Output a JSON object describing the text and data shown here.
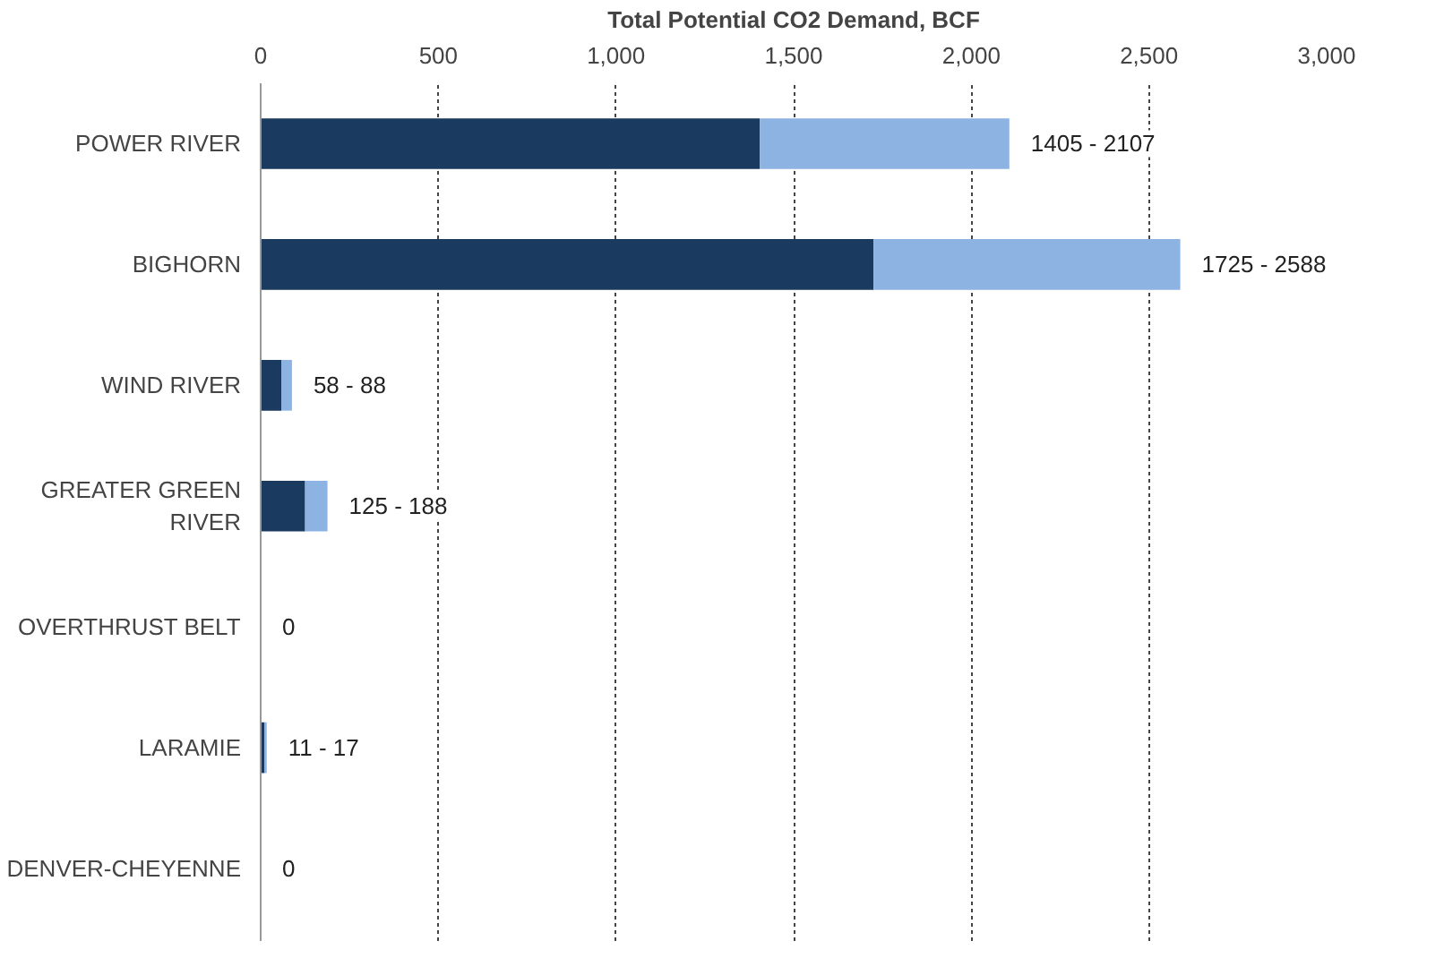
{
  "chart_data": {
    "type": "bar",
    "orientation": "horizontal",
    "stacked": true,
    "xlabel": "Total Potential CO2 Demand, BCF",
    "categories": [
      "POWER RIVER",
      "BIGHORN",
      "WIND RIVER",
      "GREATER GREEN RIVER",
      "OVERTHRUST BELT",
      "LARAMIE",
      "DENVER-CHEYENNE"
    ],
    "series": [
      {
        "color": "#1b3a5f",
        "values": [
          1405,
          1725,
          58,
          125,
          0,
          11,
          0
        ]
      },
      {
        "color": "#8db3e2",
        "values": [
          702,
          863,
          30,
          63,
          0,
          6,
          0
        ]
      }
    ],
    "annotations": [
      {
        "text": "1405 - 2107",
        "x": 2107,
        "y": "POWER RIVER"
      },
      {
        "text": "1725 - 2588",
        "x": 2588,
        "y": "BIGHORN"
      },
      {
        "text": "58 - 88",
        "x": 88,
        "y": "WIND RIVER"
      },
      {
        "text": "125 - 188",
        "x": 188,
        "y": "GREATER GREEN RIVER"
      },
      {
        "text": "0",
        "x": 0,
        "y": "OVERTHRUST BELT"
      },
      {
        "text": "11 - 17",
        "x": 17,
        "y": "LARAMIE"
      },
      {
        "text": "0",
        "x": 0,
        "y": "DENVER-CHEYENNE"
      }
    ],
    "xlim": [
      0,
      3000
    ],
    "xticks": [
      {
        "value": 0,
        "label": "0"
      },
      {
        "value": 500,
        "label": "500"
      },
      {
        "value": 1000,
        "label": "1,000"
      },
      {
        "value": 1500,
        "label": "1,500"
      },
      {
        "value": 2000,
        "label": "2,000"
      },
      {
        "value": 2500,
        "label": "2,500"
      },
      {
        "value": 3000,
        "label": "3,000"
      }
    ],
    "grid": "x"
  }
}
